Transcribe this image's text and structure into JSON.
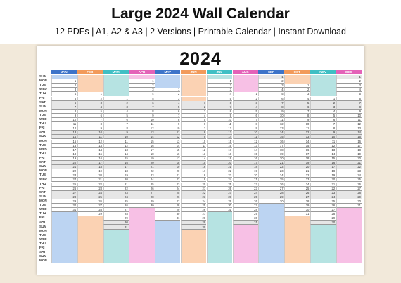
{
  "listing": {
    "title": "Large 2024 Wall Calendar",
    "subtitle": "12 PDFs | A1, A2 & A3 | 2 Versions | Printable Calendar | Instant Download"
  },
  "calendar": {
    "year": "2024",
    "day_labels": [
      "SUN",
      "MON",
      "TUE",
      "WED",
      "THU",
      "FRI",
      "SAT",
      "SUN",
      "MON",
      "TUE",
      "WED",
      "THU",
      "FRI",
      "SAT",
      "SUN",
      "MON",
      "TUE",
      "WED",
      "THU",
      "FRI",
      "SAT",
      "SUN",
      "MON",
      "TUE",
      "WED",
      "THU",
      "FRI",
      "SAT",
      "SUN",
      "MON",
      "TUE",
      "WED",
      "THU",
      "FRI",
      "SAT",
      "SUN",
      "MON",
      "TUE",
      "WED",
      "THU",
      "FRI",
      "SAT",
      "SUN",
      "MON"
    ],
    "months": [
      {
        "label": "JAN",
        "color": "#3d74c9",
        "pad": "#bcd4f2",
        "start": 1,
        "days": 31
      },
      {
        "label": "FEB",
        "color": "#f29a5a",
        "pad": "#fbd2b3",
        "start": 4,
        "days": 29
      },
      {
        "label": "MAR",
        "color": "#3fbfc4",
        "pad": "#b6e3e2",
        "start": 5,
        "days": 31
      },
      {
        "label": "APR",
        "color": "#e462b8",
        "pad": "#f7c0e5",
        "start": 1,
        "days": 30
      },
      {
        "label": "MAY",
        "color": "#3d74c9",
        "pad": "#bcd4f2",
        "start": 3,
        "days": 31
      },
      {
        "label": "JUN",
        "color": "#f29a5a",
        "pad": "#fbd2b3",
        "start": 6,
        "days": 30
      },
      {
        "label": "JUL",
        "color": "#3fbfc4",
        "pad": "#b6e3e2",
        "start": 1,
        "days": 31
      },
      {
        "label": "AUG",
        "color": "#e462b8",
        "pad": "#f7c0e5",
        "start": 4,
        "days": 31
      },
      {
        "label": "SEP",
        "color": "#3d74c9",
        "pad": "#bcd4f2",
        "start": 0,
        "days": 30
      },
      {
        "label": "OCT",
        "color": "#f29a5a",
        "pad": "#fbd2b3",
        "start": 2,
        "days": 31
      },
      {
        "label": "NOV",
        "color": "#3fbfc4",
        "pad": "#b6e3e2",
        "start": 5,
        "days": 30
      },
      {
        "label": "DEC",
        "color": "#e462b8",
        "pad": "#f7c0e5",
        "start": 0,
        "days": 31
      }
    ]
  }
}
